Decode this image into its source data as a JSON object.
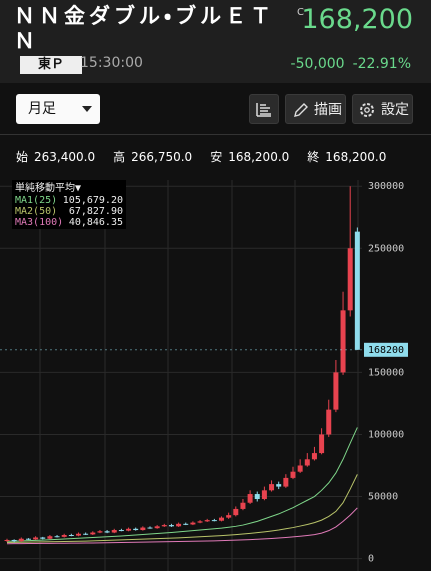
{
  "header": {
    "title": "ＮＮ金ダブル・ブルＥＴＮ",
    "market": "東Ｐ",
    "time": "15:30:00",
    "price_flag": "C",
    "price": "168,200",
    "change": "-50,000",
    "change_pct": "-22.91%"
  },
  "toolbar": {
    "period": "月足",
    "draw": "描画",
    "settings": "設定"
  },
  "ohlc": [
    {
      "label": "始",
      "value": "263,400.0"
    },
    {
      "label": "高",
      "value": "266,750.0"
    },
    {
      "label": "安",
      "value": "168,200.0"
    },
    {
      "label": "終",
      "value": "168,200.0"
    }
  ],
  "chart_data": {
    "type": "candlestick",
    "legend_title": "単純移動平均▼",
    "up_color": "#e8434f",
    "down_color": "#8fdcec",
    "open": [
      14500,
      15000,
      14000,
      16000,
      15500,
      17000,
      16000,
      18000,
      17500,
      19000,
      18500,
      20000,
      19500,
      21000,
      22000,
      21000,
      23000,
      22500,
      24000,
      23000,
      25000,
      24500,
      26000,
      27000,
      26000,
      28000,
      27500,
      29000,
      30000,
      31000,
      30500,
      33000,
      35000,
      40000,
      45000,
      52000,
      48000,
      55000,
      60000,
      58000,
      65000,
      70000,
      75000,
      80000,
      85000,
      100000,
      120000,
      150000,
      200000,
      263400
    ],
    "high": [
      16000,
      15500,
      17000,
      16500,
      18000,
      17500,
      19000,
      19000,
      20000,
      20000,
      21000,
      21000,
      22000,
      23000,
      23000,
      24000,
      24000,
      25000,
      25000,
      26000,
      26000,
      27000,
      28000,
      28000,
      29000,
      29000,
      30000,
      31000,
      32000,
      32000,
      34000,
      37000,
      42000,
      48000,
      55000,
      54000,
      58000,
      63000,
      62000,
      68000,
      74000,
      80000,
      85000,
      90000,
      105000,
      128000,
      160000,
      215000,
      300000,
      266750
    ],
    "low": [
      13500,
      13000,
      13500,
      15000,
      15000,
      15500,
      15500,
      17000,
      17000,
      18000,
      18000,
      19000,
      19000,
      20500,
      20500,
      20500,
      22000,
      22000,
      22500,
      22500,
      24000,
      24000,
      25500,
      25500,
      25500,
      27000,
      27000,
      28500,
      29500,
      30000,
      30000,
      32000,
      34000,
      39000,
      44000,
      46000,
      47000,
      54000,
      56000,
      57000,
      64000,
      69000,
      74000,
      79000,
      84000,
      98000,
      118000,
      148000,
      195000,
      168200
    ],
    "close": [
      15000,
      14000,
      16000,
      15500,
      17000,
      16000,
      18000,
      17500,
      19000,
      18500,
      20000,
      19500,
      21000,
      22000,
      21000,
      23000,
      22500,
      24000,
      23000,
      25000,
      24500,
      26000,
      27000,
      26000,
      28000,
      27500,
      29000,
      30000,
      31000,
      30500,
      33000,
      35000,
      40000,
      45000,
      52000,
      48000,
      55000,
      60000,
      58000,
      65000,
      70000,
      75000,
      80000,
      85000,
      100000,
      120000,
      150000,
      200000,
      250000,
      168200
    ],
    "series": [
      {
        "name": "MA1(25)",
        "color": "#7fd68a",
        "legend_value": "105,679.20",
        "values": [
          14000,
          14100,
          14300,
          14500,
          14700,
          14900,
          15200,
          15500,
          15800,
          16100,
          16400,
          16700,
          17000,
          17300,
          17600,
          17900,
          18200,
          18600,
          19000,
          19400,
          19800,
          20200,
          20600,
          21000,
          21500,
          22000,
          22500,
          23000,
          23500,
          24000,
          24500,
          25200,
          26000,
          27000,
          28500,
          30000,
          32000,
          34000,
          36000,
          38500,
          41000,
          44000,
          47000,
          50000,
          55000,
          61000,
          69000,
          80000,
          93000,
          105679.2
        ]
      },
      {
        "name": "MA2(50)",
        "color": "#b9c46a",
        "legend_value": "67,827.90",
        "values": [
          13000,
          13100,
          13200,
          13300,
          13400,
          13500,
          13600,
          13700,
          13800,
          13900,
          14000,
          14100,
          14300,
          14500,
          14700,
          14900,
          15100,
          15300,
          15500,
          15700,
          15900,
          16100,
          16300,
          16500,
          16700,
          17000,
          17300,
          17600,
          17900,
          18200,
          18500,
          18900,
          19300,
          19800,
          20300,
          20900,
          21500,
          22200,
          23000,
          24000,
          25000,
          26200,
          27500,
          29000,
          31000,
          34000,
          38000,
          45000,
          56000,
          67827.9
        ]
      },
      {
        "name": "MA3(100)",
        "color": "#e07ab8",
        "legend_value": "40,846.35",
        "values": [
          12000,
          12050,
          12100,
          12150,
          12200,
          12250,
          12300,
          12350,
          12400,
          12450,
          12500,
          12550,
          12600,
          12700,
          12800,
          12900,
          13000,
          13100,
          13200,
          13300,
          13400,
          13500,
          13600,
          13700,
          13800,
          13900,
          14000,
          14100,
          14200,
          14300,
          14500,
          14700,
          14900,
          15100,
          15300,
          15600,
          15900,
          16200,
          16600,
          17000,
          17500,
          18000,
          18600,
          19300,
          20500,
          22500,
          25500,
          30000,
          35000,
          40846.35
        ]
      }
    ],
    "ylim": [
      -10000,
      305000
    ],
    "yticks": [
      0,
      50000,
      100000,
      150000,
      250000,
      300000
    ],
    "grid": true
  }
}
